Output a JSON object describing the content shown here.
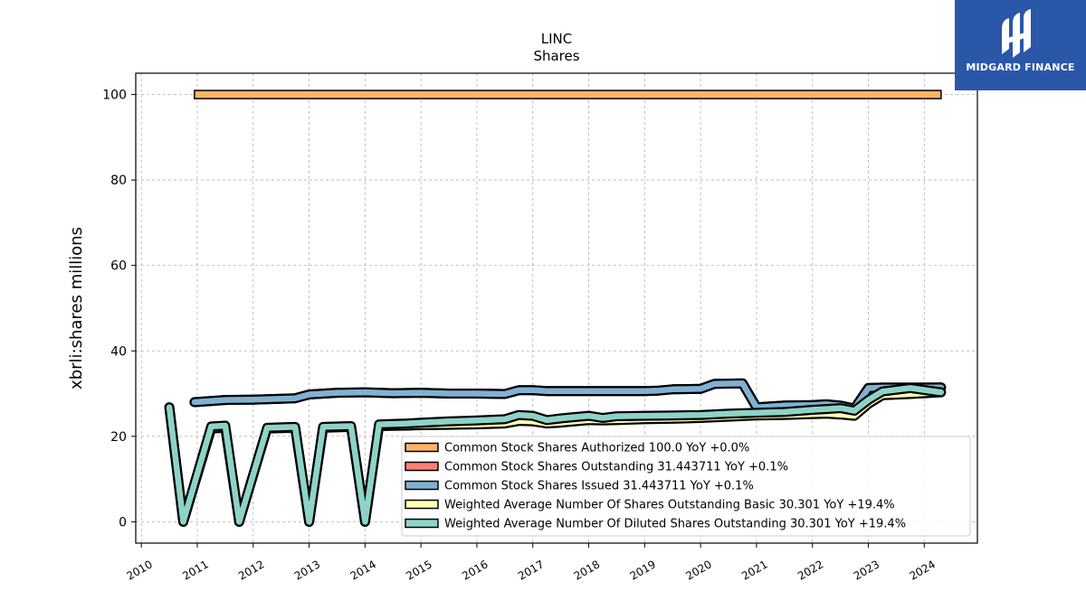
{
  "brand": {
    "name": "MIDGARD FINANCE"
  },
  "chart_data": {
    "type": "line",
    "title": "LINC",
    "subtitle": "Shares",
    "xlabel": "",
    "ylabel": "xbrli:shares millions",
    "xlim": [
      2009.9,
      2024.95
    ],
    "ylim": [
      -5,
      105
    ],
    "yticks": [
      0,
      20,
      40,
      60,
      80,
      100
    ],
    "xticks": [
      "2010",
      "2011",
      "2012",
      "2013",
      "2014",
      "2015",
      "2016",
      "2017",
      "2018",
      "2019",
      "2020",
      "2021",
      "2022",
      "2023",
      "2024"
    ],
    "grid": true,
    "legend_position": "lower-right",
    "series": [
      {
        "name": "Common Stock Shares Authorized",
        "legend_label": "Common Stock Shares Authorized  100.0 YoY +0.0%",
        "color": "#fdb462",
        "style": "band",
        "x": [
          2010.95,
          2024.3
        ],
        "y": [
          100,
          100
        ]
      },
      {
        "name": "Common Stock Shares Outstanding",
        "legend_label": "Common Stock Shares Outstanding  31.443711 YoY +0.1%",
        "color": "#fb8072",
        "style": "line",
        "x": [
          2010.95,
          2011.5,
          2012,
          2012.75,
          2013,
          2013.5,
          2014,
          2014.5,
          2015,
          2015.5,
          2016,
          2016.5,
          2016.75,
          2017,
          2017.25,
          2017.5,
          2018,
          2018.5,
          2019,
          2019.25,
          2019.5,
          2020,
          2020.25,
          2020.75,
          2021,
          2021.25,
          2021.5,
          2022,
          2022.25,
          2022.5,
          2022.75,
          2023,
          2023.25,
          2023.5,
          2024,
          2024.3
        ],
        "y": [
          28.0,
          28.5,
          28.6,
          28.9,
          29.8,
          30.2,
          30.3,
          30.1,
          30.2,
          30.0,
          30.0,
          29.9,
          30.8,
          30.8,
          30.6,
          30.6,
          30.6,
          30.6,
          30.6,
          30.7,
          31.0,
          31.1,
          32.3,
          32.4,
          26.8,
          27.0,
          27.2,
          27.3,
          27.5,
          27.2,
          26.5,
          31.3,
          31.4,
          31.4,
          31.4,
          31.44
        ]
      },
      {
        "name": "Common Stock Shares Issued",
        "legend_label": "Common Stock Shares Issued  31.443711 YoY +0.1%",
        "color": "#80b1d3",
        "style": "line",
        "x": [
          2010.95,
          2011.5,
          2012,
          2012.75,
          2013,
          2013.5,
          2014,
          2014.5,
          2015,
          2015.5,
          2016,
          2016.5,
          2016.75,
          2017,
          2017.25,
          2017.5,
          2018,
          2018.5,
          2019,
          2019.25,
          2019.5,
          2020,
          2020.25,
          2020.75,
          2021,
          2021.25,
          2021.5,
          2022,
          2022.25,
          2022.5,
          2022.75,
          2023,
          2023.25,
          2023.5,
          2024,
          2024.3
        ],
        "y": [
          28.0,
          28.5,
          28.6,
          28.9,
          29.8,
          30.2,
          30.3,
          30.1,
          30.2,
          30.0,
          30.0,
          29.9,
          30.8,
          30.8,
          30.6,
          30.6,
          30.6,
          30.6,
          30.6,
          30.7,
          31.0,
          31.1,
          32.3,
          32.4,
          26.8,
          27.0,
          27.2,
          27.3,
          27.5,
          27.2,
          26.5,
          31.3,
          31.4,
          31.4,
          31.4,
          31.44
        ]
      },
      {
        "name": "Weighted Average Number Of Shares Outstanding Basic",
        "legend_label": "Weighted Average Number Of Shares Outstanding Basic  30.301 YoY +19.4%",
        "color": "#ffffb3",
        "style": "line",
        "x": [
          2010.5,
          2010.75,
          2011.25,
          2011.5,
          2011.75,
          2012.25,
          2012.75,
          2013,
          2013.25,
          2013.75,
          2014,
          2014.25,
          2014.75,
          2015,
          2015.5,
          2016,
          2016.5,
          2016.75,
          2017,
          2017.25,
          2017.5,
          2017.75,
          2018,
          2018.25,
          2018.5,
          2019,
          2019.5,
          2020,
          2020.5,
          2021,
          2021.5,
          2022,
          2022.25,
          2022.5,
          2022.75,
          2023,
          2023.25,
          2023.75,
          2024.3
        ],
        "y": [
          26.8,
          0.0,
          21.8,
          22.0,
          0.0,
          21.8,
          22.0,
          0.0,
          22.0,
          22.2,
          0.0,
          22.4,
          22.5,
          22.6,
          22.7,
          22.8,
          23.0,
          23.6,
          23.5,
          23.0,
          23.2,
          23.5,
          23.8,
          23.7,
          23.8,
          24.0,
          24.1,
          24.3,
          24.6,
          24.9,
          25.0,
          25.2,
          25.3,
          25.1,
          24.8,
          27.6,
          29.6,
          29.9,
          30.3
        ]
      },
      {
        "name": "Weighted Average Number Of Diluted Shares Outstanding",
        "legend_label": "Weighted Average Number Of Diluted Shares Outstanding  30.301 YoY +19.4%",
        "color": "#8dd3c7",
        "style": "line",
        "x": [
          2010.5,
          2010.75,
          2011.25,
          2011.5,
          2011.75,
          2012.25,
          2012.75,
          2013,
          2013.25,
          2013.75,
          2014,
          2014.25,
          2014.75,
          2015,
          2015.5,
          2016,
          2016.5,
          2016.75,
          2017,
          2017.25,
          2017.5,
          2017.75,
          2018,
          2018.25,
          2018.5,
          2019,
          2019.5,
          2020,
          2020.5,
          2021,
          2021.5,
          2022,
          2022.25,
          2022.5,
          2022.75,
          2023,
          2023.25,
          2023.75,
          2024.3
        ],
        "y": [
          26.8,
          0.0,
          22.3,
          22.5,
          0.0,
          22.0,
          22.2,
          0.0,
          22.2,
          22.4,
          0.0,
          22.8,
          23.0,
          23.2,
          23.5,
          23.7,
          24.0,
          25.0,
          24.8,
          23.8,
          24.2,
          24.5,
          24.8,
          24.3,
          24.7,
          24.8,
          24.9,
          25.0,
          25.3,
          25.5,
          25.7,
          26.2,
          26.4,
          26.6,
          26.0,
          28.5,
          30.5,
          31.3,
          30.3
        ]
      }
    ]
  }
}
